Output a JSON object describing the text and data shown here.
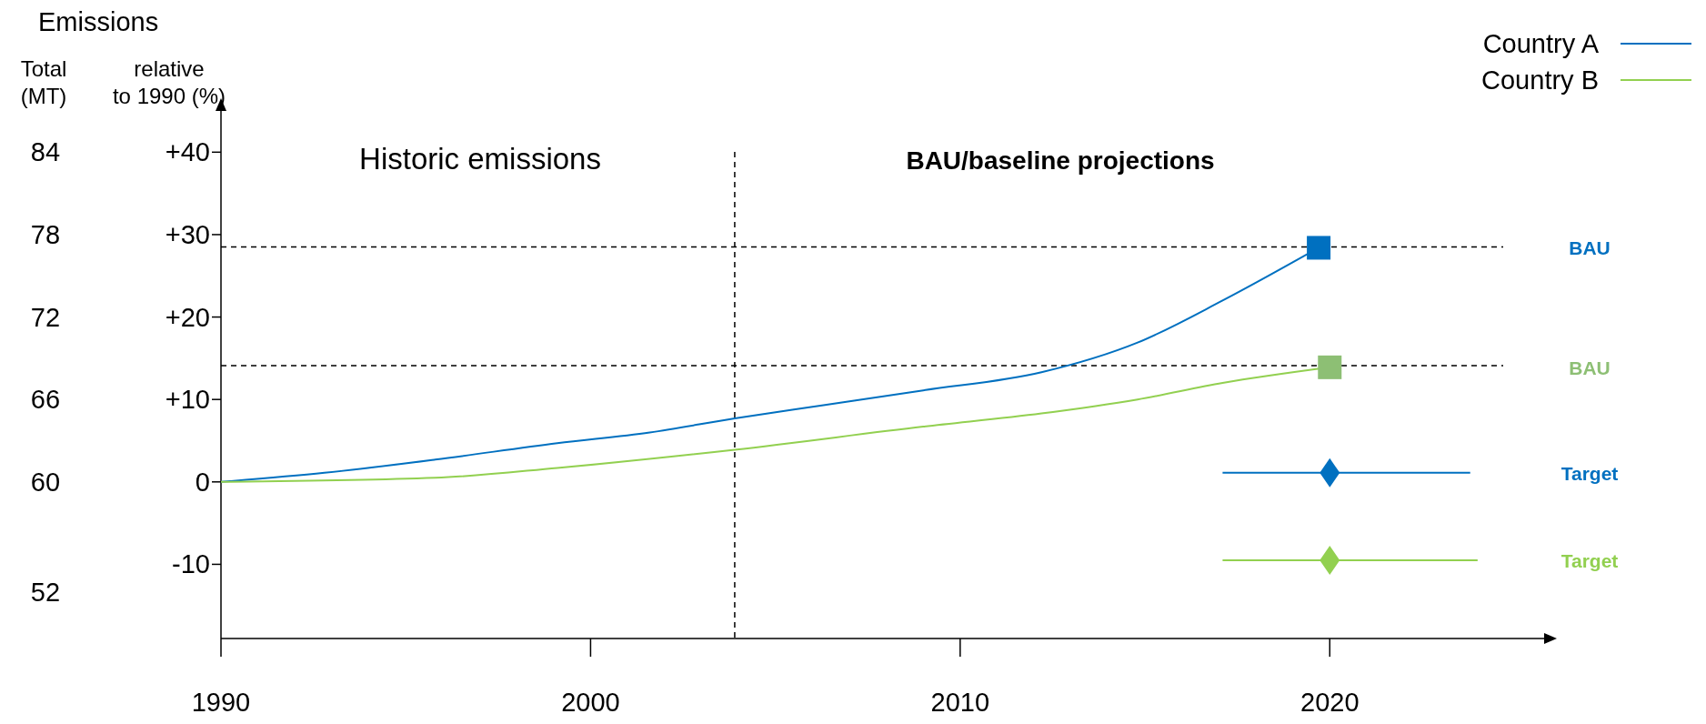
{
  "chart_data": {
    "type": "line",
    "title": "Emissions",
    "ylabel": "relative to 1990 (%)",
    "y2label": "Total (MT)",
    "annotations": [
      "Historic emissions",
      "BAU/baseline projections",
      "BAU",
      "BAU",
      "Target",
      "Target"
    ],
    "xlim": [
      1990,
      2025.8
    ],
    "xticks": [
      1990,
      2000,
      2010,
      2020
    ],
    "ylim": [
      -19,
      45
    ],
    "yticks": [
      {
        "value": 40,
        "label": "+40"
      },
      {
        "value": 30,
        "label": "+30"
      },
      {
        "value": 20,
        "label": "+20"
      },
      {
        "value": 10,
        "label": "+10"
      },
      0,
      -10
    ],
    "y2lim": [
      48.6,
      87
    ],
    "y2ticks": [
      84,
      78,
      72,
      66,
      60,
      52
    ],
    "legend": "top right",
    "grid": false,
    "ref_lines": [
      {
        "axis": "y",
        "value": 28.5,
        "color": "#000000",
        "line_style": "dashed"
      },
      {
        "axis": "y",
        "value": 14.1,
        "color": "#000000",
        "line_style": "dashed"
      },
      {
        "axis": "x",
        "value": 2003.9,
        "color": "#000000",
        "line_style": "dashed"
      }
    ],
    "series": [
      {
        "name": "Country A",
        "color": "#0070c0",
        "marker": "none",
        "x": [
          1990,
          1992.8,
          1995.8,
          1999.1,
          2001.6,
          2003.9,
          2006.3,
          2009,
          2012.2,
          2014.8,
          2017.1,
          2019.7
        ],
        "values": [
          0,
          1.1,
          2.7,
          4.7,
          6,
          7.7,
          9.3,
          11.1,
          13.3,
          16.9,
          22,
          28.4
        ]
      },
      {
        "name": "Country B",
        "color": "#92d050",
        "marker": "none",
        "x": [
          1990,
          1995.8,
          1999.1,
          2003.9,
          2009,
          2012.2,
          2014.8,
          2017.1,
          2020
        ],
        "values": [
          0,
          0.5,
          1.7,
          3.9,
          6.7,
          8.3,
          10,
          12,
          13.9
        ]
      },
      {
        "type": "scatter",
        "marker": "square",
        "color": "#0070c0",
        "x": [
          2019.7
        ],
        "values": [
          28.4
        ]
      },
      {
        "type": "scatter",
        "marker": "square",
        "color": "#8dbf74",
        "x": [
          2020
        ],
        "values": [
          13.9
        ]
      },
      {
        "type": "line",
        "color": "#0070c0",
        "marker": "none",
        "x": [
          2017.1,
          2023.8
        ],
        "values": [
          1.1,
          1.1
        ]
      },
      {
        "type": "scatter",
        "marker": "diamond",
        "color": "#0070c0",
        "x": [
          2020
        ],
        "values": [
          1.1
        ]
      },
      {
        "type": "line",
        "color": "#92d050",
        "marker": "none",
        "x": [
          2017.1,
          2024
        ],
        "values": [
          -9.5,
          -9.5
        ]
      },
      {
        "type": "scatter",
        "marker": "diamond",
        "color": "#92d050",
        "x": [
          2020
        ],
        "values": [
          -9.5
        ]
      }
    ]
  }
}
